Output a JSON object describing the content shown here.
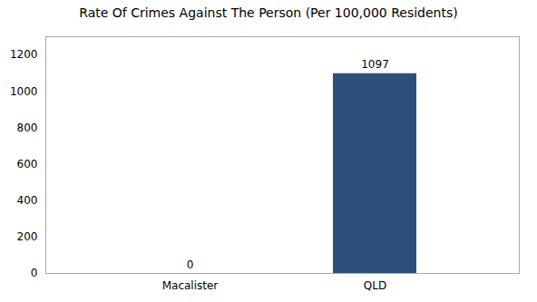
{
  "chart_data": {
    "type": "bar",
    "title": "Rate Of Crimes Against The Person (Per 100,000 Residents)",
    "categories": [
      "Macalister",
      "QLD"
    ],
    "values": [
      0,
      1097
    ],
    "colors": [
      "#2e4f7a",
      "#2e4f7a"
    ],
    "ylim": [
      0,
      1300
    ],
    "yticks": [
      0,
      200,
      400,
      600,
      800,
      1000,
      1200
    ],
    "grid": false,
    "data_labels": true
  }
}
